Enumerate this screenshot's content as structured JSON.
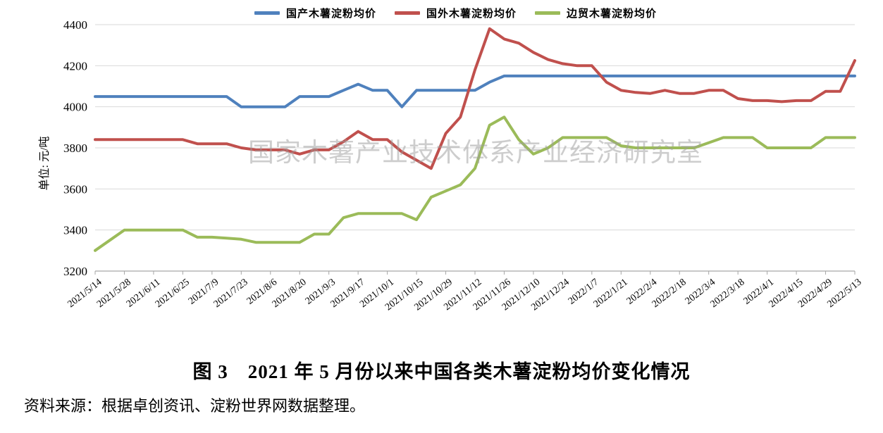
{
  "legend": {
    "items": [
      {
        "id": "domestic",
        "label": "国产木薯淀粉均价",
        "color": "#4F81BD"
      },
      {
        "id": "foreign",
        "label": "国外木薯淀粉均价",
        "color": "#C0504D"
      },
      {
        "id": "border-trade",
        "label": "边贸木薯淀粉均价",
        "color": "#9BBB59"
      }
    ]
  },
  "watermark": {
    "text": "国家木薯产业技术体系产业经济研究室"
  },
  "caption": {
    "title": "图 3　2021 年 5 月份以来中国各类木薯淀粉均价变化情况"
  },
  "source": {
    "text": "资料来源：根据卓创资讯、淀粉世界网数据整理。"
  },
  "chart_data": {
    "type": "line",
    "title": "",
    "ylabel": "单位: 元/吨",
    "ylim": [
      3200,
      4400
    ],
    "y_ticks": [
      3200,
      3400,
      3600,
      3800,
      4000,
      4200,
      4400
    ],
    "grid": true,
    "legend_position": "top",
    "x": [
      "2021/5/14",
      "2021/5/21",
      "2021/5/28",
      "2021/6/4",
      "2021/6/11",
      "2021/6/18",
      "2021/6/25",
      "2021/7/2",
      "2021/7/9",
      "2021/7/16",
      "2021/7/23",
      "2021/7/30",
      "2021/8/6",
      "2021/8/13",
      "2021/8/20",
      "2021/8/27",
      "2021/9/3",
      "2021/9/10",
      "2021/9/17",
      "2021/9/24",
      "2021/10/1",
      "2021/10/8",
      "2021/10/15",
      "2021/10/22",
      "2021/10/29",
      "2021/11/5",
      "2021/11/12",
      "2021/11/19",
      "2021/11/26",
      "2021/12/3",
      "2021/12/10",
      "2021/12/17",
      "2021/12/24",
      "2021/12/31",
      "2022/1/7",
      "2022/1/14",
      "2022/1/21",
      "2022/1/28",
      "2022/2/4",
      "2022/2/11",
      "2022/2/18",
      "2022/2/25",
      "2022/3/4",
      "2022/3/11",
      "2022/3/18",
      "2022/3/25",
      "2022/4/1",
      "2022/4/8",
      "2022/4/15",
      "2022/4/22",
      "2022/4/29",
      "2022/5/6",
      "2022/5/13"
    ],
    "x_tick_labels": [
      "2021/5/14",
      "2021/5/28",
      "2021/6/11",
      "2021/6/25",
      "2021/7/9",
      "2021/7/23",
      "2021/8/6",
      "2021/8/20",
      "2021/9/3",
      "2021/9/17",
      "2021/10/1",
      "2021/10/15",
      "2021/10/29",
      "2021/11/12",
      "2021/11/26",
      "2021/12/10",
      "2021/12/24",
      "2022/1/7",
      "2022/1/21",
      "2022/2/4",
      "2022/2/18",
      "2022/3/4",
      "2022/3/18",
      "2022/4/1",
      "2022/4/15",
      "2022/4/29",
      "2022/5/13"
    ],
    "series": [
      {
        "id": "domestic",
        "name": "国产木薯淀粉均价",
        "color": "#4F81BD",
        "values": [
          4050,
          4050,
          4050,
          4050,
          4050,
          4050,
          4050,
          4050,
          4050,
          4050,
          4000,
          4000,
          4000,
          4000,
          4050,
          4050,
          4050,
          4080,
          4110,
          4080,
          4080,
          4000,
          4080,
          4080,
          4080,
          4080,
          4080,
          4120,
          4150,
          4150,
          4150,
          4150,
          4150,
          4150,
          4150,
          4150,
          4150,
          4150,
          4150,
          4150,
          4150,
          4150,
          4150,
          4150,
          4150,
          4150,
          4150,
          4150,
          4150,
          4150,
          4150,
          4150,
          4150
        ]
      },
      {
        "id": "foreign",
        "name": "国外木薯淀粉均价",
        "color": "#C0504D",
        "values": [
          3840,
          3840,
          3840,
          3840,
          3840,
          3840,
          3840,
          3820,
          3820,
          3820,
          3800,
          3790,
          3790,
          3790,
          3770,
          3790,
          3790,
          3830,
          3880,
          3840,
          3840,
          3780,
          3740,
          3700,
          3870,
          3950,
          4180,
          4380,
          4330,
          4310,
          4265,
          4230,
          4210,
          4200,
          4200,
          4120,
          4080,
          4070,
          4065,
          4080,
          4065,
          4065,
          4080,
          4080,
          4040,
          4030,
          4030,
          4025,
          4030,
          4030,
          4075,
          4075,
          4225
        ]
      },
      {
        "id": "border-trade",
        "name": "边贸木薯淀粉均价",
        "color": "#9BBB59",
        "values": [
          3300,
          3350,
          3400,
          3400,
          3400,
          3400,
          3400,
          3365,
          3365,
          3360,
          3355,
          3340,
          3340,
          3340,
          3340,
          3380,
          3380,
          3460,
          3480,
          3480,
          3480,
          3480,
          3450,
          3560,
          3590,
          3620,
          3700,
          3910,
          3950,
          3840,
          3770,
          3800,
          3850,
          3850,
          3850,
          3850,
          3810,
          3800,
          3800,
          3800,
          3800,
          3800,
          3825,
          3850,
          3850,
          3850,
          3800,
          3800,
          3800,
          3800,
          3850,
          3850,
          3850
        ]
      }
    ]
  }
}
